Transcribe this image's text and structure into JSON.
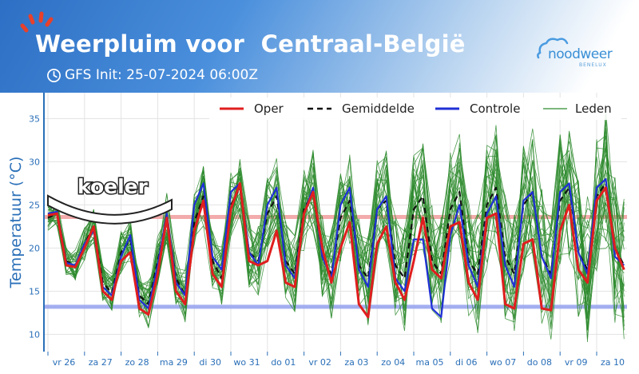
{
  "header": {
    "title": "Weerpluim voor  Centraal-België",
    "init": "GFS Init: 25-07-2024 06:00Z",
    "clock_icon": "clock-icon",
    "logo_name": "noodweer",
    "logo_sub": "BENELUX"
  },
  "colors": {
    "oper": "#e01e1e",
    "mean": "#111111",
    "control": "#1f2fd6",
    "members": "#2e8b2e",
    "upper_band": "#f2a3a3",
    "lower_band": "#9aa6ef",
    "axis_text": "#2a6fb8"
  },
  "chart_data": {
    "type": "line",
    "ylabel": "Temperatuur (°C)",
    "ylim": [
      8,
      38
    ],
    "yticks": [
      10,
      15,
      20,
      25,
      30,
      35
    ],
    "grid": true,
    "legend": "top-right",
    "x_ticks": [
      "vr 26",
      "za 27",
      "zo 28",
      "ma 29",
      "di 30",
      "wo 31",
      "do 01",
      "vr 02",
      "za 03",
      "zo 04",
      "ma 05",
      "di 06",
      "wo 07",
      "do 08",
      "vr 09",
      "za 10"
    ],
    "step_hours": 6,
    "reference_lines": [
      {
        "name": "upper",
        "y": 23.6
      },
      {
        "name": "lower",
        "y": 13.2
      }
    ],
    "annotation": "koeler",
    "series": [
      {
        "name": "Oper",
        "style": "solid",
        "values": [
          23.8,
          24.0,
          18.0,
          17.8,
          20.0,
          22.5,
          15.0,
          14.0,
          18.5,
          19.5,
          13.0,
          12.3,
          17.0,
          23.5,
          15.0,
          13.5,
          22.0,
          25.5,
          17.0,
          15.5,
          24.5,
          27.5,
          18.5,
          18.0,
          18.5,
          22.0,
          16.0,
          15.5,
          24.0,
          26.5,
          20.0,
          16.0,
          20.0,
          23.0,
          13.5,
          12.0,
          20.5,
          22.5,
          16.0,
          14.0,
          18.5,
          23.5,
          17.5,
          16.5,
          22.5,
          23.0,
          16.0,
          14.0,
          23.5,
          24.0,
          13.5,
          13.0,
          20.5,
          21.0,
          13.0,
          12.8,
          22.0,
          25.0,
          17.5,
          16.0,
          25.5,
          27.0,
          20.0,
          17.5
        ]
      },
      {
        "name": "Gemiddelde",
        "style": "dashed",
        "values": [
          23.5,
          24.0,
          18.5,
          18.0,
          20.5,
          22.5,
          16.0,
          14.8,
          19.5,
          21.0,
          14.5,
          13.5,
          18.5,
          23.5,
          16.5,
          14.5,
          23.0,
          26.0,
          18.5,
          16.5,
          25.0,
          27.0,
          19.5,
          18.5,
          24.0,
          26.0,
          18.5,
          17.0,
          24.5,
          26.5,
          19.0,
          17.0,
          23.5,
          25.5,
          18.0,
          16.5,
          24.5,
          25.5,
          18.0,
          16.5,
          24.5,
          26.0,
          18.5,
          17.0,
          24.5,
          26.5,
          18.5,
          17.0,
          25.0,
          27.0,
          19.0,
          17.0,
          25.0,
          26.5,
          19.0,
          17.0,
          25.5,
          27.0,
          19.5,
          17.5,
          26.0,
          27.5,
          20.0,
          18.0
        ]
      },
      {
        "name": "Controle",
        "style": "solid",
        "values": [
          24.0,
          24.2,
          18.3,
          18.0,
          20.5,
          22.0,
          15.5,
          14.5,
          19.0,
          21.5,
          14.0,
          13.0,
          18.0,
          24.0,
          16.0,
          14.5,
          25.0,
          27.5,
          19.0,
          17.5,
          26.5,
          27.5,
          19.5,
          18.0,
          25.0,
          27.0,
          18.0,
          16.5,
          24.0,
          27.0,
          19.0,
          16.5,
          25.0,
          27.0,
          17.5,
          15.5,
          24.5,
          26.0,
          16.5,
          15.0,
          21.0,
          21.0,
          13.0,
          12.0,
          21.5,
          25.0,
          18.0,
          15.5,
          24.0,
          26.0,
          18.0,
          15.5,
          25.5,
          26.5,
          19.0,
          16.5,
          26.5,
          27.5,
          19.5,
          17.0,
          27.0,
          28.0,
          19.0,
          18.0
        ]
      }
    ]
  }
}
